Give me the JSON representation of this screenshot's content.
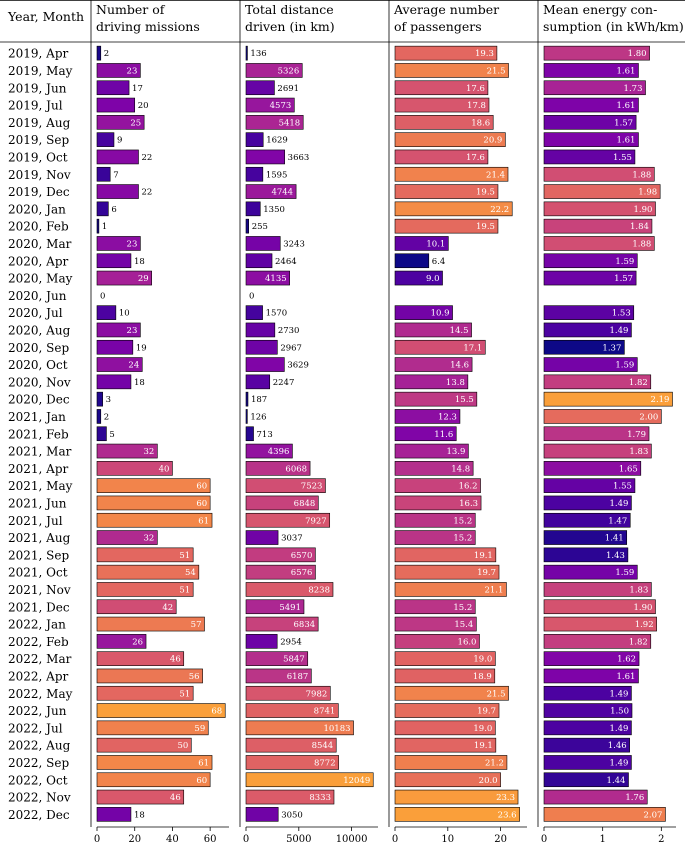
{
  "chart_data": {
    "type": "bar",
    "orientation": "horizontal",
    "row_header": "Year, Month",
    "categories": [
      "2019, Apr",
      "2019, May",
      "2019, Jun",
      "2019, Jul",
      "2019, Aug",
      "2019, Sep",
      "2019, Oct",
      "2019, Nov",
      "2019, Dec",
      "2020, Jan",
      "2020, Feb",
      "2020, Mar",
      "2020, Apr",
      "2020, May",
      "2020, Jun",
      "2020, Jul",
      "2020, Aug",
      "2020, Sep",
      "2020, Oct",
      "2020, Nov",
      "2020, Dec",
      "2021, Jan",
      "2021, Feb",
      "2021, Mar",
      "2021, Apr",
      "2021, May",
      "2021, Jun",
      "2021, Jul",
      "2021, Aug",
      "2021, Sep",
      "2021, Oct",
      "2021, Nov",
      "2021, Dec",
      "2022, Jan",
      "2022, Feb",
      "2022, Mar",
      "2022, Apr",
      "2022, May",
      "2022, Jun",
      "2022, Jul",
      "2022, Aug",
      "2022, Sep",
      "2022, Oct",
      "2022, Nov",
      "2022, Dec"
    ],
    "series": [
      {
        "name": "Number of driving missions",
        "title_lines": [
          "Number of",
          "driving missions"
        ],
        "xlim": [
          0,
          70
        ],
        "ticks": [
          0,
          20,
          40,
          60
        ],
        "tick_labels": [
          "0",
          "20",
          "40",
          "60"
        ],
        "values": [
          2,
          23,
          17,
          20,
          25,
          9,
          22,
          7,
          22,
          6,
          1,
          23,
          18,
          29,
          0,
          10,
          23,
          19,
          24,
          18,
          3,
          2,
          5,
          32,
          40,
          60,
          60,
          61,
          32,
          51,
          54,
          51,
          42,
          57,
          26,
          46,
          56,
          51,
          68,
          59,
          50,
          61,
          60,
          46,
          18
        ],
        "labels": [
          "2",
          "23",
          "17",
          "20",
          "25",
          "9",
          "22",
          "7",
          "22",
          "6",
          "1",
          "23",
          "18",
          "29",
          "0",
          "10",
          "23",
          "19",
          "24",
          "18",
          "3",
          "2",
          "5",
          "32",
          "40",
          "60",
          "60",
          "61",
          "32",
          "51",
          "54",
          "51",
          "42",
          "57",
          "26",
          "46",
          "56",
          "51",
          "68",
          "59",
          "50",
          "61",
          "60",
          "46",
          "18"
        ]
      },
      {
        "name": "Total distance driven (in km)",
        "title_lines": [
          "Total distance",
          "driven (in km)"
        ],
        "xlim": [
          0,
          12500
        ],
        "ticks": [
          0,
          5000,
          10000
        ],
        "tick_labels": [
          "0",
          "5000",
          "10000"
        ],
        "values": [
          136,
          5326,
          2691,
          4573,
          5418,
          1629,
          3663,
          1595,
          4744,
          1350,
          255,
          3243,
          2464,
          4135,
          0,
          1570,
          2730,
          2967,
          3629,
          2247,
          187,
          126,
          713,
          4396,
          6068,
          7523,
          6848,
          7927,
          3037,
          6570,
          6576,
          8238,
          5491,
          6834,
          2954,
          5847,
          6187,
          7982,
          8741,
          10183,
          8544,
          8772,
          12049,
          8333,
          3050
        ],
        "labels": [
          "136",
          "5326",
          "2691",
          "4573",
          "5418",
          "1629",
          "3663",
          "1595",
          "4744",
          "1350",
          "255",
          "3243",
          "2464",
          "4135",
          "0",
          "1570",
          "2730",
          "2967",
          "3629",
          "2247",
          "187",
          "126",
          "713",
          "4396",
          "6068",
          "7523",
          "6848",
          "7927",
          "3037",
          "6570",
          "6576",
          "8238",
          "5491",
          "6834",
          "2954",
          "5847",
          "6187",
          "7982",
          "8741",
          "10183",
          "8544",
          "8772",
          "12049",
          "8333",
          "3050"
        ]
      },
      {
        "name": "Average number of passengers",
        "title_lines": [
          "Average number",
          "of passengers"
        ],
        "xlim": [
          0,
          25
        ],
        "ticks": [
          0,
          10,
          20
        ],
        "tick_labels": [
          "0",
          "10",
          "20"
        ],
        "values": [
          19.3,
          21.5,
          17.6,
          17.8,
          18.6,
          20.9,
          17.6,
          21.4,
          19.5,
          22.2,
          19.5,
          10.1,
          6.4,
          9.0,
          null,
          10.9,
          14.5,
          17.1,
          14.6,
          13.8,
          15.5,
          12.3,
          11.6,
          13.9,
          14.8,
          16.2,
          16.3,
          15.2,
          15.2,
          19.1,
          19.7,
          21.1,
          15.2,
          15.4,
          16.0,
          19.0,
          18.9,
          21.5,
          19.7,
          19.0,
          19.1,
          21.2,
          20.0,
          23.3,
          23.6
        ],
        "labels": [
          "19.3",
          "21.5",
          "17.6",
          "17.8",
          "18.6",
          "20.9",
          "17.6",
          "21.4",
          "19.5",
          "22.2",
          "19.5",
          "10.1",
          "6.4",
          "9.0",
          "",
          "10.9",
          "14.5",
          "17.1",
          "14.6",
          "13.8",
          "15.5",
          "12.3",
          "11.6",
          "13.9",
          "14.8",
          "16.2",
          "16.3",
          "15.2",
          "15.2",
          "19.1",
          "19.7",
          "21.1",
          "15.2",
          "15.4",
          "16.0",
          "19.0",
          "18.9",
          "21.5",
          "19.7",
          "19.0",
          "19.1",
          "21.2",
          "20.0",
          "23.3",
          "23.6"
        ]
      },
      {
        "name": "Mean energy consumption (in kWh/km)",
        "title_lines": [
          "Mean energy con-",
          "sumption (in kWh/km)"
        ],
        "title_unit": {
          "num": "kWh",
          "den": "km"
        },
        "xlim": [
          0,
          2.25
        ],
        "ticks": [
          0,
          1,
          2
        ],
        "tick_labels": [
          "0",
          "1",
          "2"
        ],
        "values": [
          1.8,
          1.61,
          1.73,
          1.61,
          1.57,
          1.61,
          1.55,
          1.88,
          1.98,
          1.9,
          1.84,
          1.88,
          1.59,
          1.57,
          null,
          1.53,
          1.49,
          1.37,
          1.59,
          1.82,
          2.19,
          2.0,
          1.79,
          1.83,
          1.65,
          1.55,
          1.49,
          1.47,
          1.41,
          1.43,
          1.59,
          1.83,
          1.9,
          1.92,
          1.82,
          1.62,
          1.61,
          1.49,
          1.5,
          1.49,
          1.46,
          1.49,
          1.44,
          1.76,
          2.07
        ],
        "labels": [
          "1.80",
          "1.61",
          "1.73",
          "1.61",
          "1.57",
          "1.61",
          "1.55",
          "1.88",
          "1.98",
          "1.90",
          "1.84",
          "1.88",
          "1.59",
          "1.57",
          "",
          "1.53",
          "1.49",
          "1.37",
          "1.59",
          "1.82",
          "2.19",
          "2.00",
          "1.79",
          "1.83",
          "1.65",
          "1.55",
          "1.49",
          "1.47",
          "1.41",
          "1.43",
          "1.59",
          "1.83",
          "1.90",
          "1.92",
          "1.82",
          "1.62",
          "1.61",
          "1.49",
          "1.50",
          "1.49",
          "1.46",
          "1.49",
          "1.44",
          "1.76",
          "2.07"
        ]
      }
    ],
    "color_map": {
      "name": "plasma",
      "stops": [
        "#0d0887",
        "#4c02a1",
        "#7e03a8",
        "#a92395",
        "#cc4778",
        "#e16462",
        "#f2844b",
        "#fca636",
        "#fcce25"
      ],
      "note": "bar colour encodes value within each column (dark blue = low, orange = high)"
    }
  }
}
